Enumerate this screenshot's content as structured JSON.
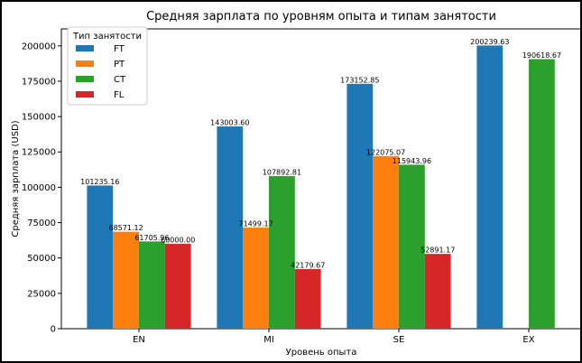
{
  "chart_data": {
    "type": "bar",
    "title": "Средняя зарплата по уровням опыта и типам занятости",
    "xlabel": "Уровень опыта",
    "ylabel": "Средняя зарплата (USD)",
    "categories": [
      "EN",
      "MI",
      "SE",
      "EX"
    ],
    "ylim": [
      0,
      212000
    ],
    "yticks": [
      0,
      25000,
      50000,
      75000,
      100000,
      125000,
      150000,
      175000,
      200000
    ],
    "grid": false,
    "legend": {
      "title": "Тип занятости",
      "position": "top-left"
    },
    "series": [
      {
        "name": "FT",
        "color": "#1f77b4",
        "values": [
          101235.16,
          143003.6,
          173152.85,
          200239.63
        ],
        "labels": [
          "101235.16",
          "143003.60",
          "173152.85",
          "200239.63"
        ]
      },
      {
        "name": "PT",
        "color": "#ff7f0e",
        "values": [
          68571.12,
          71499.17,
          122075.07,
          null
        ],
        "labels": [
          "68571.12",
          "71499.17",
          "122075.07",
          ""
        ]
      },
      {
        "name": "CT",
        "color": "#2ca02c",
        "values": [
          61705.96,
          107892.81,
          115943.96,
          190618.67
        ],
        "labels": [
          "61705.96",
          "107892.81",
          "115943.96",
          "190618.67"
        ]
      },
      {
        "name": "FL",
        "color": "#d62728",
        "values": [
          60000.0,
          42179.67,
          52891.17,
          null
        ],
        "labels": [
          "60000.00",
          "42179.67",
          "52891.17",
          ""
        ]
      }
    ]
  }
}
